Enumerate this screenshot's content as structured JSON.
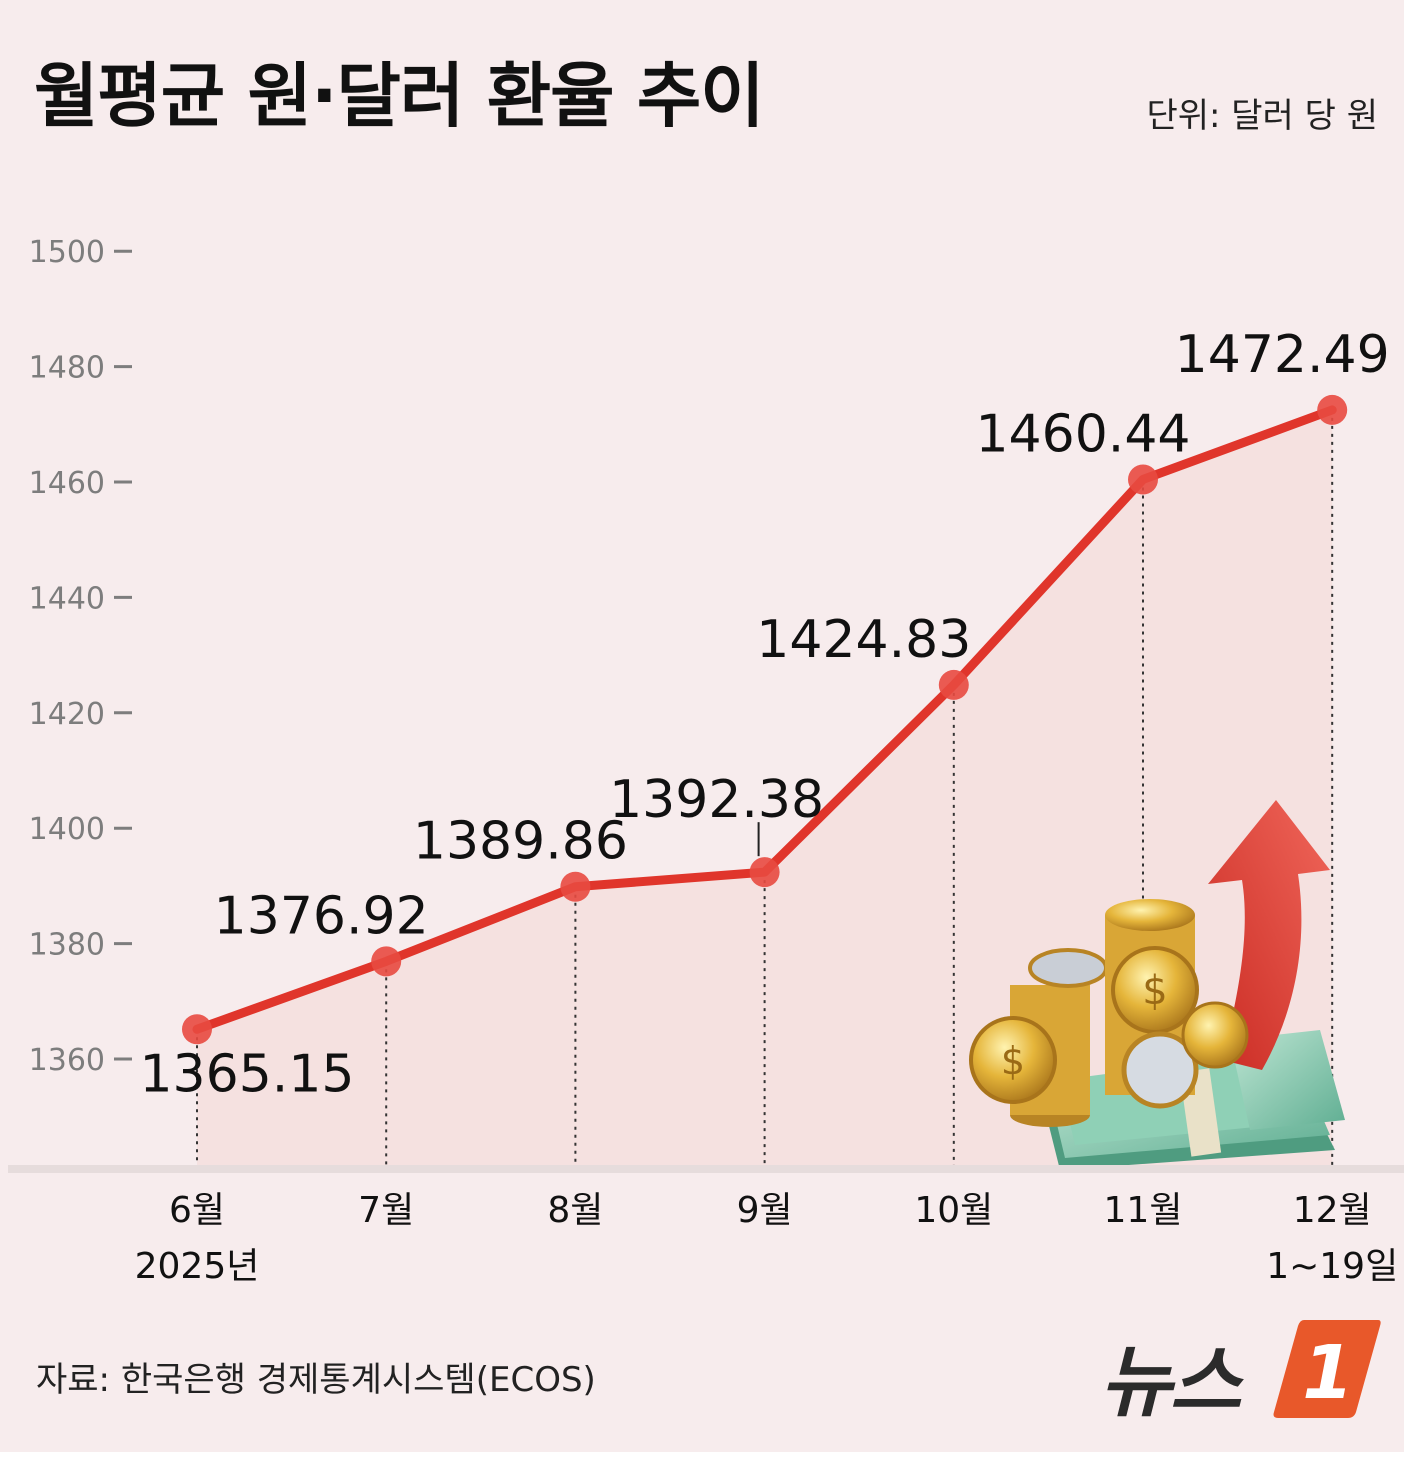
{
  "title": "월평균 원·달러 환율 추이",
  "unit": "단위: 달러 당 원",
  "source": "자료: 한국은행 경제통계시스템(ECOS)",
  "logo": {
    "text": "뉴스",
    "mark": "1"
  },
  "colors": {
    "line": "#e0352b",
    "fill": "#f4d9d6",
    "background": "#f7eced",
    "logo_mark": "#e8582a"
  },
  "chart_data": {
    "type": "line",
    "title": "월평균 원·달러 환율 추이",
    "xlabel": "",
    "ylabel": "",
    "ylim": [
      1340,
      1500
    ],
    "yticks": [
      1360,
      1380,
      1400,
      1420,
      1440,
      1460,
      1480,
      1500
    ],
    "categories": [
      [
        "6월",
        "2025년"
      ],
      [
        "7월"
      ],
      [
        "8월"
      ],
      [
        "9월"
      ],
      [
        "10월"
      ],
      [
        "11월"
      ],
      [
        "12월",
        "1~19일"
      ]
    ],
    "series": [
      {
        "values": [
          1365.15,
          1376.92,
          1389.86,
          1392.38,
          1424.83,
          1460.44,
          1472.49
        ],
        "labels": [
          "1365.15",
          "1376.92",
          "1389.86",
          "1392.38",
          "1424.83",
          "1460.44",
          "1472.49"
        ]
      }
    ],
    "grid": false,
    "legend": "none",
    "area_fill": true,
    "decoration": "gold-coins-banknotes-up-arrow"
  }
}
